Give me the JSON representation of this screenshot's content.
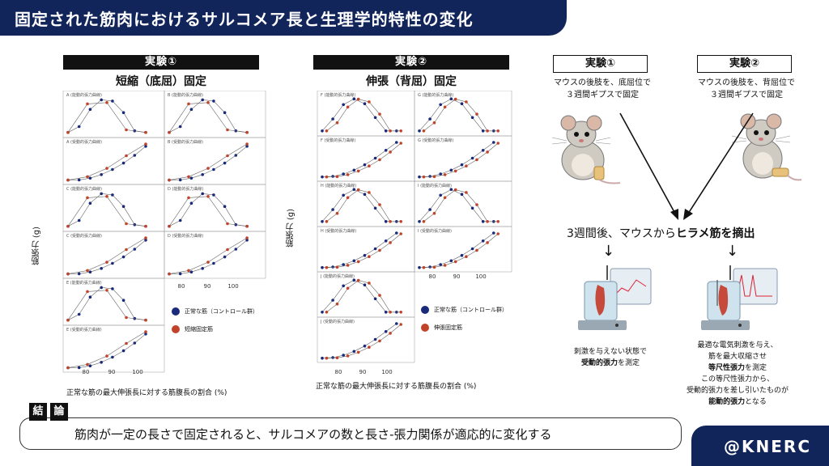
{
  "header": {
    "title": "固定された筋肉におけるサルコメア長と生理学的特性の変化"
  },
  "brand": "@KNERC",
  "left": {
    "tag": "実験①",
    "subtitle": "短縮（底屈）固定",
    "ylabel": "筋張力 (g)",
    "xlabel": "正常な筋の最大伸張長に対する筋腹長の割合 (%)",
    "xticks": [
      "80",
      "90",
      "100"
    ],
    "xticks_bottom": [
      "80",
      "90",
      "100"
    ],
    "legend": [
      {
        "label": "正常な筋（コントロール群）",
        "color": "#1a2a7a"
      },
      {
        "label": "短縮固定筋",
        "color": "#c0432a"
      }
    ],
    "panels": [
      "A (能動的張力曲線)",
      "B (能動的張力曲線)",
      "A (受動的張力曲線)",
      "B (受動的張力曲線)",
      "C (能動的張力曲線)",
      "D (能動的張力曲線)",
      "C (受動的張力曲線)",
      "D (受動的張力曲線)",
      "E (能動的張力曲線)",
      "E (受動的張力曲線)"
    ]
  },
  "middle": {
    "tag": "実験②",
    "subtitle": "伸張（背屈）固定",
    "ylabel": "筋張力 (g)",
    "xlabel": "正常な筋の最大伸張長に対する筋腹長の割合 (%)",
    "xticks": [
      "80",
      "90",
      "100"
    ],
    "xticks_bottom": [
      "80",
      "90",
      "100"
    ],
    "legend": [
      {
        "label": "正常な筋（コントロール群）",
        "color": "#1a2a7a"
      },
      {
        "label": "伸張固定筋",
        "color": "#c0432a"
      }
    ],
    "panels": [
      "F (能動的張力曲線)",
      "G (能動的張力曲線)",
      "F (受動的張力曲線)",
      "G (受動的張力曲線)",
      "H (能動的張力曲線)",
      "I (能動的張力曲線)",
      "H (受動的張力曲線)",
      "I (受動的張力曲線)",
      "J (能動的張力曲線)",
      "J (受動的張力曲線)"
    ]
  },
  "right": {
    "exp1": {
      "tag": "実験①",
      "line1": "マウスの後肢を、底屈位で",
      "line2": "３週間ギプスで固定"
    },
    "exp2": {
      "tag": "実験②",
      "line1": "マウスの後肢を、背屈位で",
      "line2": "３週間ギプスで固定"
    },
    "center_pre": "3週間後、マウスから",
    "center_bold": "ヒラメ筋を摘出",
    "left_desc": {
      "line1": "刺激を与えない状態で",
      "bold": "受動的張力",
      "line2_post": "を測定"
    },
    "right_desc": {
      "line1": "最適な電気刺激を与え、",
      "line2": "筋を最大収縮させ",
      "bold1": "等尺性張力",
      "line3_post": "を測定",
      "line4": "この等尺性張力から、",
      "line5": "受動的張力を差し引いたものが",
      "bold2": "能動的張力",
      "line6_post": "となる"
    },
    "arrow_down": "↓"
  },
  "conclusion": {
    "tag1": "結",
    "tag2": "論",
    "text": "筋肉が一定の長さで固定されると、サルコメアの数と長さ-張力関係が適応的に変化する"
  }
}
